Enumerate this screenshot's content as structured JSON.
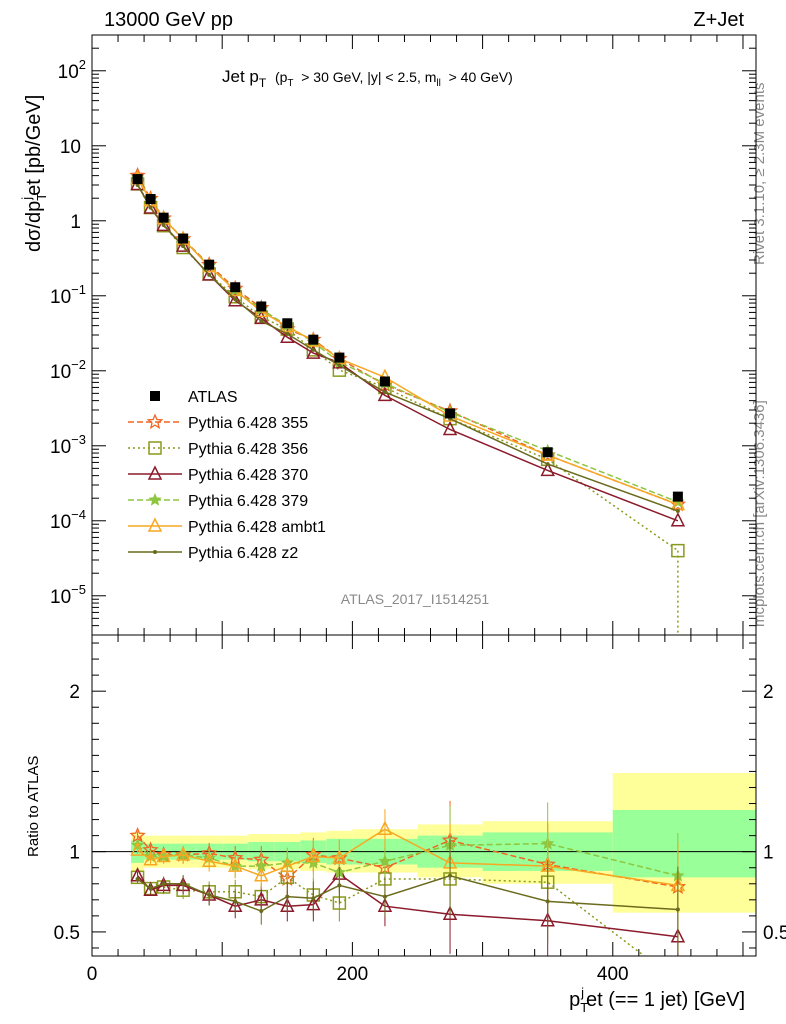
{
  "header": {
    "left": "13000 GeV pp",
    "right": "Z+Jet"
  },
  "side": {
    "rivet": "Rivet 3.1.10, ≥ 2.3M events",
    "mcplots": "mcplots.cern.ch [arXiv:1306.3436]"
  },
  "chart_data": [
    {
      "type": "line",
      "title_main": "Jet p",
      "title_sub": "T",
      "title_cut": "(p",
      "title_cut_sub": "T",
      "title_cut_rest": "> 30 GeV, |y| < 2.5, m",
      "title_cut_sub2": "ll",
      "title_cut_end": "> 40 GeV)",
      "ylabel": "dσ/dp",
      "ylabel_sub": "T",
      "ylabel_sup": "j",
      "ylabel_rest": "et [pb/GeV]",
      "yscale": "log",
      "ylim": [
        3e-06,
        300
      ],
      "xlim": [
        0,
        510
      ],
      "yticks": [
        {
          "v": 1e-05,
          "base": "10",
          "exp": "−5"
        },
        {
          "v": 0.0001,
          "base": "10",
          "exp": "−4"
        },
        {
          "v": 0.001,
          "base": "10",
          "exp": "−3"
        },
        {
          "v": 0.01,
          "base": "10",
          "exp": "−2"
        },
        {
          "v": 0.1,
          "base": "10",
          "exp": "−1"
        },
        {
          "v": 1,
          "base": "1",
          "exp": ""
        },
        {
          "v": 10,
          "base": "10",
          "exp": ""
        },
        {
          "v": 100,
          "base": "10",
          "exp": "2"
        }
      ],
      "watermark": "ATLAS_2017_I1514251",
      "legend_position": "bottom-left",
      "x": [
        35,
        45,
        55,
        70,
        90,
        110,
        130,
        150,
        170,
        190,
        225,
        275,
        350,
        450
      ],
      "data": {
        "name": "ATLAS",
        "values": [
          3.6,
          1.95,
          1.1,
          0.58,
          0.26,
          0.13,
          0.072,
          0.043,
          0.026,
          0.015,
          0.0072,
          0.0027,
          0.00082,
          0.00021
        ]
      },
      "series": [
        {
          "name": "Pythia 6.428 355",
          "color": "#f26522",
          "dash": "6,3",
          "marker": "star-open",
          "values": [
            4.0,
            1.97,
            1.08,
            0.57,
            0.26,
            0.125,
            0.069,
            0.036,
            0.026,
            0.0145,
            0.0065,
            0.0029,
            0.00075,
            0.000165
          ]
        },
        {
          "name": "Pythia 6.428 356",
          "color": "#8a9a1b",
          "dash": "2,3",
          "marker": "square-open",
          "values": [
            3.1,
            1.5,
            0.86,
            0.44,
            0.195,
            0.097,
            0.052,
            0.036,
            0.019,
            0.0102,
            0.006,
            0.0023,
            0.00066,
            4e-05
          ]
        },
        {
          "name": "Pythia 6.428 370",
          "color": "#8b1a2b",
          "dash": "",
          "marker": "triangle-open",
          "values": [
            3.05,
            1.48,
            0.87,
            0.46,
            0.19,
            0.086,
            0.05,
            0.028,
            0.0172,
            0.0128,
            0.0047,
            0.00165,
            0.00047,
            0.0001
          ]
        },
        {
          "name": "Pythia 6.428 379",
          "color": "#8dc63f",
          "dash": "6,3",
          "marker": "star-filled",
          "values": [
            3.75,
            1.9,
            1.07,
            0.57,
            0.25,
            0.118,
            0.066,
            0.04,
            0.024,
            0.013,
            0.0068,
            0.0028,
            0.00086,
            0.000178
          ]
        },
        {
          "name": "Pythia 6.428 ambt1",
          "color": "#f7a823",
          "dash": "",
          "marker": "triangle-open",
          "values": [
            3.65,
            1.85,
            1.07,
            0.57,
            0.245,
            0.118,
            0.062,
            0.039,
            0.025,
            0.0145,
            0.0082,
            0.0025,
            0.00075,
            0.000165
          ]
        },
        {
          "name": "Pythia 6.428 z2",
          "color": "#6b6b1e",
          "dash": "",
          "marker": "dot",
          "values": [
            3.0,
            1.5,
            0.88,
            0.46,
            0.19,
            0.09,
            0.046,
            0.031,
            0.019,
            0.0118,
            0.0052,
            0.0023,
            0.00057,
            0.000135
          ]
        }
      ]
    },
    {
      "type": "line",
      "ylabel": "Ratio to ATLAS",
      "ylim": [
        0.35,
        2.35
      ],
      "xlim": [
        0,
        510
      ],
      "yticks": [
        0.5,
        1,
        2
      ],
      "xticks": [
        0,
        200,
        400
      ],
      "xlabel": "p",
      "xlabel_sub": "T",
      "xlabel_sup": "j",
      "xlabel_rest": "et (== 1 jet) [GeV]",
      "bands": {
        "bin_edges": [
          30,
          40,
          50,
          60,
          80,
          100,
          120,
          140,
          160,
          180,
          200,
          250,
          300,
          400,
          510
        ],
        "stat_lo": [
          0.93,
          0.95,
          0.95,
          0.95,
          0.95,
          0.95,
          0.94,
          0.94,
          0.93,
          0.92,
          0.92,
          0.9,
          0.88,
          0.84
        ],
        "stat_hi": [
          1.07,
          1.05,
          1.05,
          1.05,
          1.05,
          1.05,
          1.06,
          1.06,
          1.07,
          1.08,
          1.08,
          1.1,
          1.12,
          1.26
        ],
        "tot_lo": [
          0.88,
          0.9,
          0.9,
          0.9,
          0.9,
          0.9,
          0.89,
          0.89,
          0.88,
          0.87,
          0.87,
          0.84,
          0.8,
          0.62
        ],
        "tot_hi": [
          1.12,
          1.1,
          1.1,
          1.1,
          1.1,
          1.1,
          1.11,
          1.11,
          1.12,
          1.13,
          1.14,
          1.17,
          1.19,
          1.49
        ]
      },
      "ratios": [
        [
          1.1,
          1.01,
          0.98,
          0.98,
          0.99,
          0.96,
          0.95,
          0.83,
          0.98,
          0.96,
          0.9,
          1.07,
          0.92,
          0.78
        ],
        [
          0.84,
          0.77,
          0.78,
          0.76,
          0.75,
          0.75,
          0.72,
          0.84,
          0.73,
          0.68,
          0.83,
          0.83,
          0.81,
          0.19
        ],
        [
          0.85,
          0.76,
          0.79,
          0.79,
          0.73,
          0.66,
          0.7,
          0.66,
          0.67,
          0.86,
          0.66,
          0.61,
          0.57,
          0.47
        ],
        [
          1.04,
          0.97,
          0.97,
          0.98,
          0.96,
          0.91,
          0.91,
          0.93,
          0.93,
          0.87,
          0.94,
          1.04,
          1.05,
          0.85
        ],
        [
          1.01,
          0.95,
          0.97,
          0.98,
          0.94,
          0.91,
          0.85,
          0.91,
          0.97,
          0.96,
          1.14,
          0.93,
          0.91,
          0.79
        ],
        [
          0.83,
          0.77,
          0.8,
          0.8,
          0.73,
          0.69,
          0.63,
          0.72,
          0.71,
          0.79,
          0.72,
          0.85,
          0.69,
          0.64
        ]
      ]
    }
  ]
}
